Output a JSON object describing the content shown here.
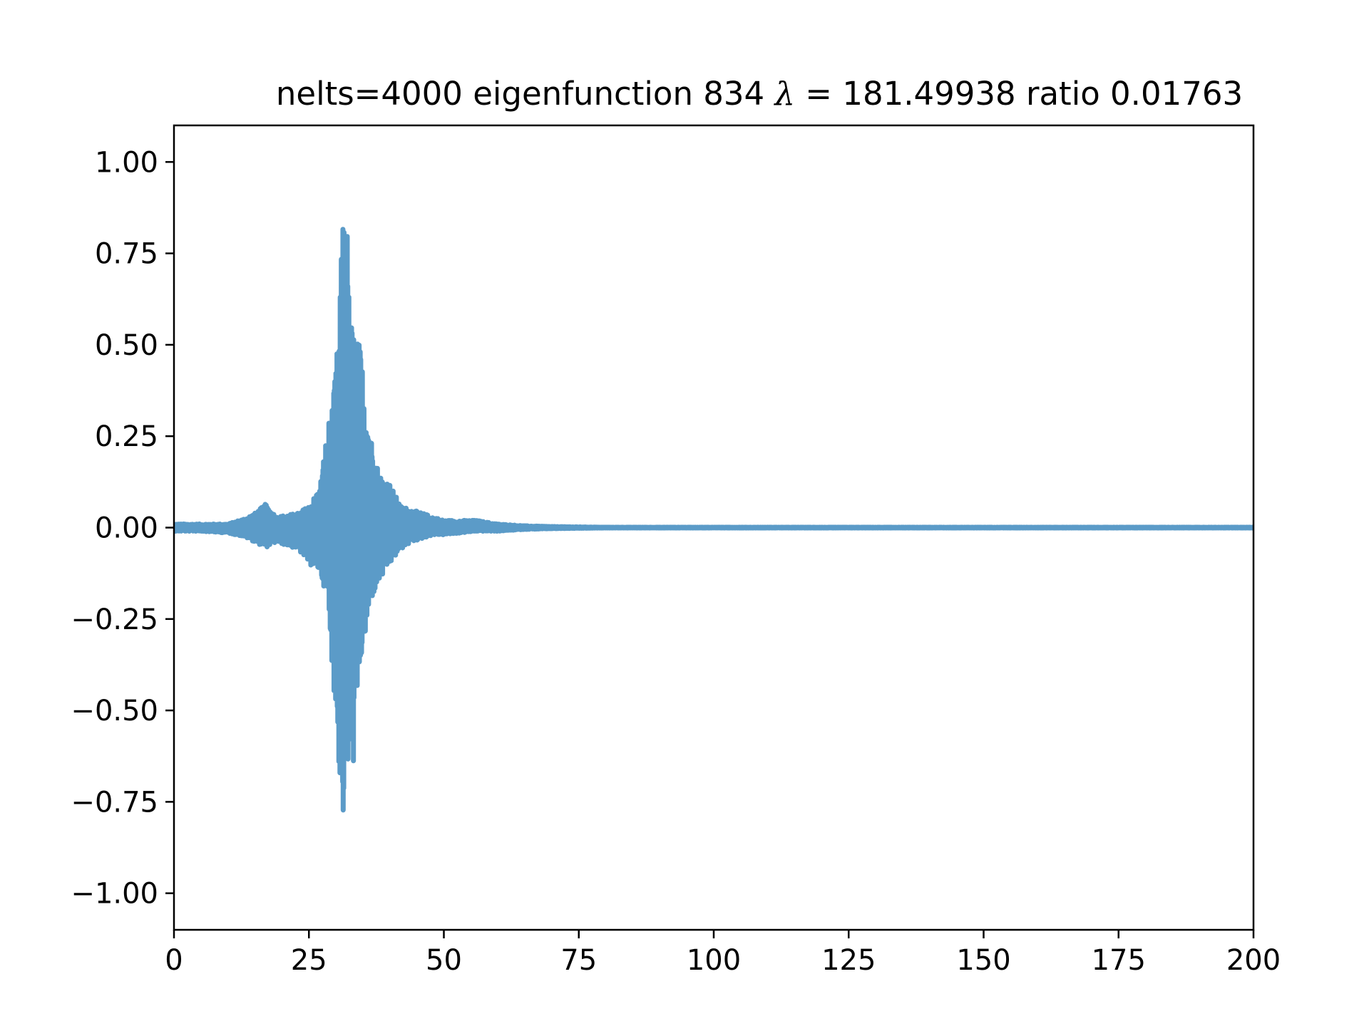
{
  "chart_data": {
    "type": "line",
    "title": "nelts=4000  eigenfunction 834  λ = 181.49938 ratio 0.01763",
    "title_parts": {
      "prefix": "nelts=4000  eigenfunction 834  ",
      "symbol": "λ",
      "relation": " = ",
      "value": "181.49938 ratio 0.01763"
    },
    "xlabel": "",
    "ylabel": "",
    "xlim": [
      0,
      200
    ],
    "ylim": [
      -1.1,
      1.1
    ],
    "x_ticks": [
      0,
      25,
      50,
      75,
      100,
      125,
      150,
      175,
      200
    ],
    "x_tick_labels": [
      "0",
      "25",
      "50",
      "75",
      "100",
      "125",
      "150",
      "175",
      "200"
    ],
    "y_ticks": [
      1.0,
      0.75,
      0.5,
      0.25,
      0.0,
      -0.25,
      -0.5,
      -0.75,
      -1.0
    ],
    "y_tick_labels": [
      "1.00",
      "0.75",
      "0.50",
      "0.25",
      "0.00",
      "−0.25",
      "−0.50",
      "−0.75",
      "−1.00"
    ],
    "grid": false,
    "legend": false,
    "series": [
      {
        "color": "#5b9bc8",
        "envelope_x": [
          0,
          5,
          10,
          13,
          15,
          17,
          19,
          21,
          23,
          25,
          27,
          28.5,
          29.5,
          30.5,
          31.2,
          31.8,
          32.5,
          33.5,
          34.5,
          35.5,
          36.5,
          38,
          40,
          42,
          44,
          46,
          48,
          50,
          53,
          56,
          60,
          65,
          70,
          75,
          80,
          100,
          150,
          200
        ],
        "envelope_upper": [
          0.01,
          0.01,
          0.01,
          0.025,
          0.04,
          0.065,
          0.03,
          0.035,
          0.04,
          0.06,
          0.11,
          0.28,
          0.35,
          0.54,
          0.82,
          1.0,
          0.59,
          0.53,
          0.5,
          0.37,
          0.25,
          0.15,
          0.12,
          0.06,
          0.05,
          0.04,
          0.03,
          0.02,
          0.02,
          0.02,
          0.01,
          0.005,
          0.003,
          0.002,
          0.001,
          0.001,
          0.001,
          0.001
        ],
        "envelope_lower": [
          -0.01,
          -0.01,
          -0.015,
          -0.025,
          -0.04,
          -0.055,
          -0.04,
          -0.05,
          -0.06,
          -0.1,
          -0.12,
          -0.2,
          -0.42,
          -0.64,
          -0.82,
          -0.75,
          -0.64,
          -0.65,
          -0.38,
          -0.3,
          -0.2,
          -0.15,
          -0.1,
          -0.06,
          -0.04,
          -0.03,
          -0.02,
          -0.02,
          -0.015,
          -0.01,
          -0.01,
          -0.005,
          -0.003,
          -0.002,
          -0.001,
          -0.001,
          -0.001,
          -0.001
        ]
      }
    ]
  }
}
